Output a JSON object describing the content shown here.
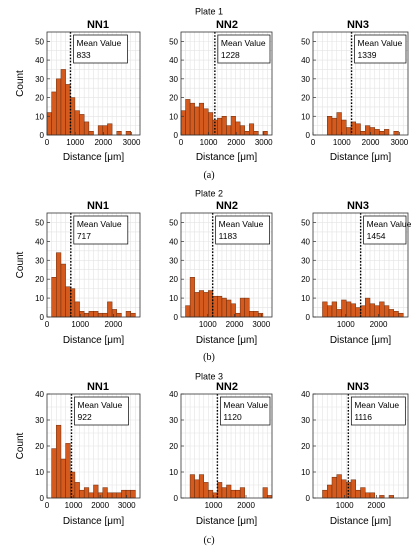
{
  "colors": {
    "bar": "#d45a1e",
    "bar_edge": "#6a2a0a",
    "grid": "#e3e3e3",
    "axis": "#333333",
    "mean_line": "#000000"
  },
  "chart_data": [
    {
      "plate_title": "Plate 1",
      "caption": "(a)",
      "panels": [
        {
          "title": "NN1",
          "type": "bar",
          "mean_label": "Mean Value",
          "mean_value": "833",
          "mean": 833,
          "xlabel": "Distance [μm]",
          "ylabel": "Count",
          "xlim": [
            0,
            3300
          ],
          "ylim": [
            0,
            55
          ],
          "xticks": [
            "0",
            "1000",
            "2000",
            "3000"
          ],
          "xtick_values": [
            0,
            1000,
            2000,
            3000
          ],
          "yticks": [
            "0",
            "10",
            "20",
            "30",
            "40",
            "50"
          ],
          "ytick_values": [
            0,
            10,
            20,
            30,
            40,
            50
          ],
          "bin_width": 165,
          "bins": [
            {
              "x": 0,
              "y": 12
            },
            {
              "x": 165,
              "y": 23
            },
            {
              "x": 330,
              "y": 30
            },
            {
              "x": 495,
              "y": 35
            },
            {
              "x": 660,
              "y": 27
            },
            {
              "x": 825,
              "y": 20
            },
            {
              "x": 990,
              "y": 13
            },
            {
              "x": 1155,
              "y": 11
            },
            {
              "x": 1320,
              "y": 7
            },
            {
              "x": 1485,
              "y": 2
            },
            {
              "x": 1815,
              "y": 5
            },
            {
              "x": 1980,
              "y": 5
            },
            {
              "x": 2145,
              "y": 6
            },
            {
              "x": 2475,
              "y": 2
            },
            {
              "x": 2805,
              "y": 2
            }
          ]
        },
        {
          "title": "NN2",
          "type": "bar",
          "mean_label": "Mean Value",
          "mean_value": "1228",
          "mean": 1228,
          "xlabel": "Distance [μm]",
          "ylabel": "",
          "xlim": [
            0,
            3300
          ],
          "ylim": [
            0,
            55
          ],
          "xticks": [
            "0",
            "1000",
            "2000",
            "3000"
          ],
          "xtick_values": [
            0,
            1000,
            2000,
            3000
          ],
          "yticks": [
            "0",
            "10",
            "20",
            "30",
            "40",
            "50"
          ],
          "ytick_values": [
            0,
            10,
            20,
            30,
            40,
            50
          ],
          "bin_width": 165,
          "bins": [
            {
              "x": 0,
              "y": 13
            },
            {
              "x": 165,
              "y": 19
            },
            {
              "x": 330,
              "y": 17
            },
            {
              "x": 495,
              "y": 15
            },
            {
              "x": 660,
              "y": 17
            },
            {
              "x": 825,
              "y": 14
            },
            {
              "x": 990,
              "y": 12
            },
            {
              "x": 1155,
              "y": 8
            },
            {
              "x": 1320,
              "y": 9
            },
            {
              "x": 1485,
              "y": 10
            },
            {
              "x": 1650,
              "y": 5
            },
            {
              "x": 1815,
              "y": 10
            },
            {
              "x": 1980,
              "y": 7
            },
            {
              "x": 2145,
              "y": 5
            },
            {
              "x": 2310,
              "y": 2
            },
            {
              "x": 2475,
              "y": 6
            },
            {
              "x": 2640,
              "y": 2
            },
            {
              "x": 2970,
              "y": 2
            }
          ]
        },
        {
          "title": "NN3",
          "type": "bar",
          "mean_label": "Mean Value",
          "mean_value": "1339",
          "mean": 1339,
          "xlabel": "Distance [μm]",
          "ylabel": "",
          "xlim": [
            0,
            3300
          ],
          "ylim": [
            0,
            55
          ],
          "xticks": [
            "0",
            "1000",
            "2000",
            "3000"
          ],
          "xtick_values": [
            0,
            1000,
            2000,
            3000
          ],
          "yticks": [
            "0",
            "10",
            "20",
            "30",
            "40",
            "50"
          ],
          "ytick_values": [
            0,
            10,
            20,
            30,
            40,
            50
          ],
          "bin_width": 165,
          "bins": [
            {
              "x": 495,
              "y": 10
            },
            {
              "x": 660,
              "y": 9
            },
            {
              "x": 825,
              "y": 12
            },
            {
              "x": 990,
              "y": 8
            },
            {
              "x": 1155,
              "y": 4
            },
            {
              "x": 1320,
              "y": 7
            },
            {
              "x": 1485,
              "y": 6
            },
            {
              "x": 1650,
              "y": 2
            },
            {
              "x": 1815,
              "y": 5
            },
            {
              "x": 1980,
              "y": 4
            },
            {
              "x": 2145,
              "y": 3
            },
            {
              "x": 2310,
              "y": 2
            },
            {
              "x": 2475,
              "y": 3
            },
            {
              "x": 2805,
              "y": 2
            }
          ]
        }
      ]
    },
    {
      "plate_title": "Plate 2",
      "caption": "(b)",
      "panels": [
        {
          "title": "NN1",
          "type": "bar",
          "mean_label": "Mean Value",
          "mean_value": "717",
          "mean": 717,
          "xlabel": "Distance [μm]",
          "ylabel": "Count",
          "xlim": [
            0,
            2800
          ],
          "ylim": [
            0,
            55
          ],
          "xticks": [
            "0",
            "1000",
            "2000"
          ],
          "xtick_values": [
            0,
            1000,
            2000
          ],
          "yticks": [
            "0",
            "10",
            "20",
            "30",
            "40",
            "50"
          ],
          "ytick_values": [
            0,
            10,
            20,
            30,
            40,
            50
          ],
          "bin_width": 140,
          "bins": [
            {
              "x": 140,
              "y": 21
            },
            {
              "x": 280,
              "y": 34
            },
            {
              "x": 420,
              "y": 28
            },
            {
              "x": 560,
              "y": 16
            },
            {
              "x": 700,
              "y": 15
            },
            {
              "x": 840,
              "y": 8
            },
            {
              "x": 980,
              "y": 3
            },
            {
              "x": 1120,
              "y": 2
            },
            {
              "x": 1260,
              "y": 3
            },
            {
              "x": 1400,
              "y": 3
            },
            {
              "x": 1540,
              "y": 2
            },
            {
              "x": 1680,
              "y": 2
            },
            {
              "x": 1820,
              "y": 8
            },
            {
              "x": 1960,
              "y": 4
            },
            {
              "x": 2100,
              "y": 2
            },
            {
              "x": 2380,
              "y": 3
            },
            {
              "x": 2520,
              "y": 2
            }
          ]
        },
        {
          "title": "NN2",
          "type": "bar",
          "mean_label": "Mean Value",
          "mean_value": "1183",
          "mean": 1183,
          "xlabel": "Distance [μm]",
          "ylabel": "",
          "xlim": [
            0,
            3400
          ],
          "ylim": [
            0,
            55
          ],
          "xticks": [
            "1000",
            "2000",
            "3000"
          ],
          "xtick_values": [
            1000,
            2000,
            3000
          ],
          "yticks": [
            "0",
            "10",
            "20",
            "30",
            "40",
            "50"
          ],
          "ytick_values": [
            0,
            10,
            20,
            30,
            40,
            50
          ],
          "bin_width": 170,
          "bins": [
            {
              "x": 170,
              "y": 6
            },
            {
              "x": 340,
              "y": 21
            },
            {
              "x": 510,
              "y": 13
            },
            {
              "x": 680,
              "y": 14
            },
            {
              "x": 850,
              "y": 13
            },
            {
              "x": 1020,
              "y": 14
            },
            {
              "x": 1190,
              "y": 11
            },
            {
              "x": 1360,
              "y": 11
            },
            {
              "x": 1530,
              "y": 10
            },
            {
              "x": 1700,
              "y": 9
            },
            {
              "x": 1870,
              "y": 7
            },
            {
              "x": 2040,
              "y": 2
            },
            {
              "x": 2210,
              "y": 10
            },
            {
              "x": 2380,
              "y": 10
            },
            {
              "x": 2550,
              "y": 3
            },
            {
              "x": 2720,
              "y": 3
            },
            {
              "x": 2890,
              "y": 2
            }
          ]
        },
        {
          "title": "NN3",
          "type": "bar",
          "mean_label": "Mean Value",
          "mean_value": "1454",
          "mean": 1454,
          "xlabel": "Distance [μm]",
          "ylabel": "",
          "xlim": [
            0,
            2900
          ],
          "ylim": [
            0,
            55
          ],
          "xticks": [
            "1000",
            "2000"
          ],
          "xtick_values": [
            1000,
            2000
          ],
          "yticks": [
            "0",
            "10",
            "20",
            "30",
            "40",
            "50"
          ],
          "ytick_values": [
            0,
            10,
            20,
            30,
            40,
            50
          ],
          "bin_width": 145,
          "bins": [
            {
              "x": 290,
              "y": 8
            },
            {
              "x": 435,
              "y": 6
            },
            {
              "x": 580,
              "y": 8
            },
            {
              "x": 725,
              "y": 4
            },
            {
              "x": 870,
              "y": 9
            },
            {
              "x": 1015,
              "y": 8
            },
            {
              "x": 1160,
              "y": 7
            },
            {
              "x": 1305,
              "y": 5
            },
            {
              "x": 1450,
              "y": 6
            },
            {
              "x": 1595,
              "y": 10
            },
            {
              "x": 1740,
              "y": 7
            },
            {
              "x": 1885,
              "y": 6
            },
            {
              "x": 2030,
              "y": 8
            },
            {
              "x": 2175,
              "y": 6
            },
            {
              "x": 2320,
              "y": 4
            },
            {
              "x": 2465,
              "y": 3
            },
            {
              "x": 2610,
              "y": 2
            }
          ]
        }
      ]
    },
    {
      "plate_title": "Plate 3",
      "caption": "(c)",
      "panels": [
        {
          "title": "NN1",
          "type": "bar",
          "mean_label": "Mean Value",
          "mean_value": "922",
          "mean": 922,
          "xlabel": "Distance [μm]",
          "ylabel": "Count",
          "xlim": [
            0,
            3500
          ],
          "ylim": [
            0,
            40
          ],
          "xticks": [
            "0",
            "1000",
            "2000",
            "3000"
          ],
          "xtick_values": [
            0,
            1000,
            2000,
            3000
          ],
          "yticks": [
            "0",
            "10",
            "20",
            "30",
            "40"
          ],
          "ytick_values": [
            0,
            10,
            20,
            30,
            40
          ],
          "bin_width": 175,
          "bins": [
            {
              "x": 175,
              "y": 19
            },
            {
              "x": 350,
              "y": 28
            },
            {
              "x": 525,
              "y": 15
            },
            {
              "x": 700,
              "y": 21
            },
            {
              "x": 875,
              "y": 10
            },
            {
              "x": 1050,
              "y": 6
            },
            {
              "x": 1225,
              "y": 3
            },
            {
              "x": 1400,
              "y": 4
            },
            {
              "x": 1575,
              "y": 2
            },
            {
              "x": 1750,
              "y": 5
            },
            {
              "x": 1925,
              "y": 2
            },
            {
              "x": 2100,
              "y": 4
            },
            {
              "x": 2275,
              "y": 2
            },
            {
              "x": 2450,
              "y": 2
            },
            {
              "x": 2625,
              "y": 2
            },
            {
              "x": 2800,
              "y": 3
            },
            {
              "x": 2975,
              "y": 3
            },
            {
              "x": 3150,
              "y": 3
            }
          ]
        },
        {
          "title": "NN2",
          "type": "bar",
          "mean_label": "Mean Value",
          "mean_value": "1120",
          "mean": 1120,
          "xlabel": "Distance [μm]",
          "ylabel": "",
          "xlim": [
            0,
            2800
          ],
          "ylim": [
            0,
            40
          ],
          "xticks": [
            "1000",
            "2000"
          ],
          "xtick_values": [
            1000,
            2000
          ],
          "yticks": [
            "0",
            "10",
            "20",
            "30",
            "40"
          ],
          "ytick_values": [
            0,
            10,
            20,
            30,
            40
          ],
          "bin_width": 140,
          "bins": [
            {
              "x": 280,
              "y": 9
            },
            {
              "x": 420,
              "y": 7
            },
            {
              "x": 560,
              "y": 9
            },
            {
              "x": 700,
              "y": 6
            },
            {
              "x": 840,
              "y": 3
            },
            {
              "x": 980,
              "y": 2
            },
            {
              "x": 1120,
              "y": 6
            },
            {
              "x": 1260,
              "y": 4
            },
            {
              "x": 1400,
              "y": 5
            },
            {
              "x": 1540,
              "y": 3
            },
            {
              "x": 1680,
              "y": 3
            },
            {
              "x": 1820,
              "y": 4
            },
            {
              "x": 2520,
              "y": 4
            },
            {
              "x": 2660,
              "y": 1
            }
          ]
        },
        {
          "title": "NN3",
          "type": "bar",
          "mean_label": "Mean Value",
          "mean_value": "1116",
          "mean": 1116,
          "xlabel": "Distance [μm]",
          "ylabel": "",
          "xlim": [
            0,
            3000
          ],
          "ylim": [
            0,
            40
          ],
          "xticks": [
            "1000",
            "2000"
          ],
          "xtick_values": [
            1000,
            2000
          ],
          "yticks": [
            "0",
            "10",
            "20",
            "30",
            "40"
          ],
          "ytick_values": [
            0,
            10,
            20,
            30,
            40
          ],
          "bin_width": 150,
          "bins": [
            {
              "x": 300,
              "y": 3
            },
            {
              "x": 450,
              "y": 5
            },
            {
              "x": 600,
              "y": 8
            },
            {
              "x": 750,
              "y": 9
            },
            {
              "x": 900,
              "y": 7
            },
            {
              "x": 1050,
              "y": 6
            },
            {
              "x": 1200,
              "y": 7
            },
            {
              "x": 1350,
              "y": 3
            },
            {
              "x": 1500,
              "y": 4
            },
            {
              "x": 1650,
              "y": 2
            },
            {
              "x": 1800,
              "y": 2
            },
            {
              "x": 2100,
              "y": 1
            },
            {
              "x": 2400,
              "y": 1
            }
          ]
        }
      ]
    }
  ]
}
